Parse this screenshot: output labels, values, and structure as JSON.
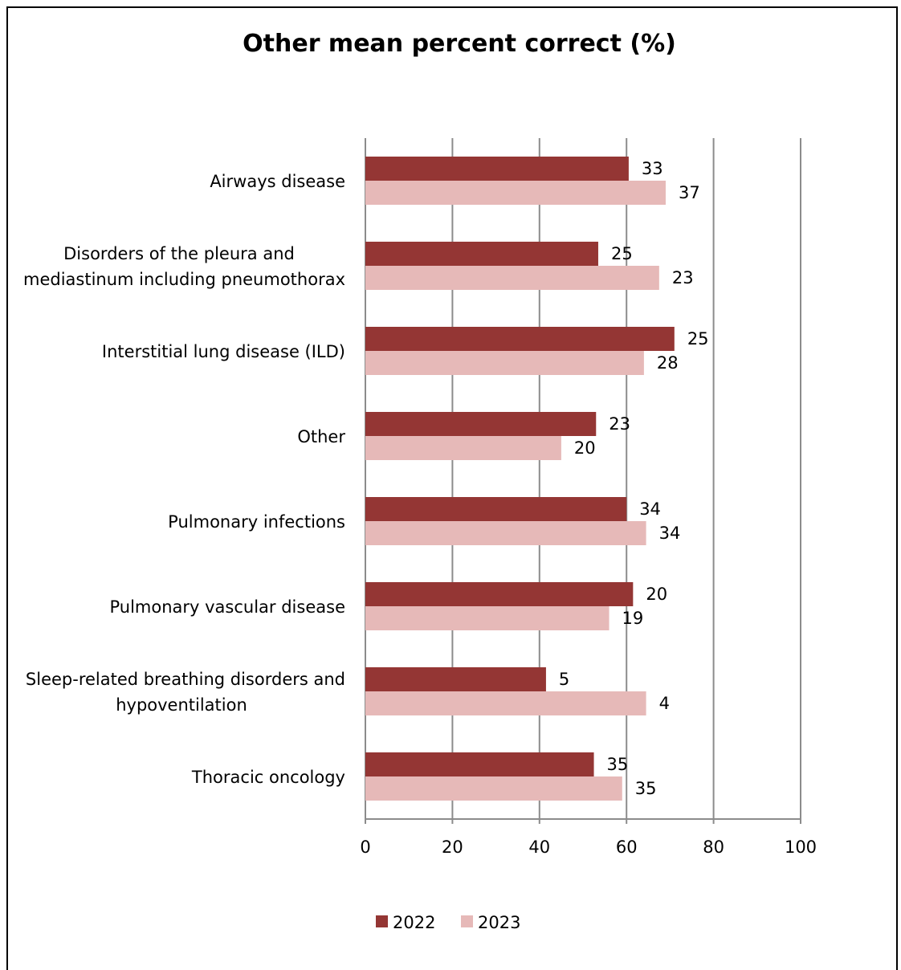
{
  "chart_data": {
    "type": "bar",
    "orientation": "horizontal",
    "title": "Other mean percent correct (%)",
    "xlabel": "",
    "ylabel": "",
    "xlim": [
      0,
      100
    ],
    "x_ticks": [
      "0",
      "20",
      "40",
      "60",
      "80",
      "100"
    ],
    "grid": true,
    "legend_position": "bottom",
    "categories": [
      [
        "Airways disease"
      ],
      [
        "Disorders of the pleura and",
        "mediastinum including pneumothorax"
      ],
      [
        "Interstitial lung disease (ILD)"
      ],
      [
        "Other"
      ],
      [
        "Pulmonary infections"
      ],
      [
        "Pulmonary vascular disease"
      ],
      [
        "Sleep-related breathing disorders and",
        "hypoventilation"
      ],
      [
        "Thoracic oncology"
      ]
    ],
    "series": [
      {
        "name": "2022",
        "color": "#943634",
        "values": [
          60.5,
          53.5,
          71,
          53,
          60,
          61.5,
          41.5,
          52.5
        ],
        "labels": [
          "33",
          "25",
          "25",
          "23",
          "34",
          "20",
          "5",
          "35"
        ]
      },
      {
        "name": "2023",
        "color": "#e6b9b8",
        "values": [
          69,
          67.5,
          64,
          45,
          64.5,
          56,
          64.5,
          59
        ],
        "labels": [
          "37",
          "23",
          "28",
          "20",
          "34",
          "19",
          "4",
          "35"
        ]
      }
    ]
  }
}
